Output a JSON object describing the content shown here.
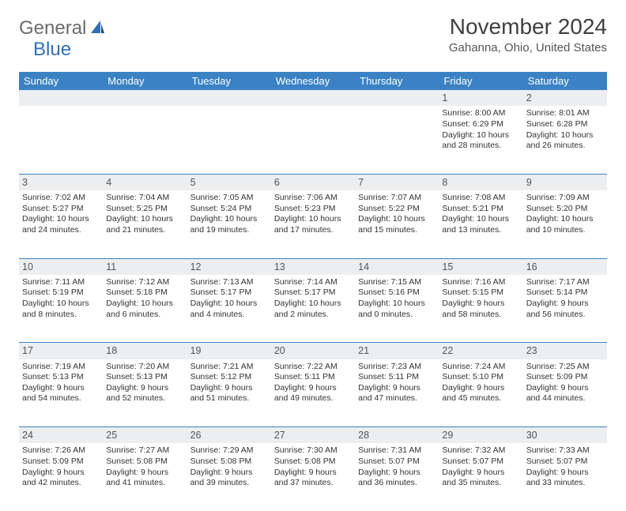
{
  "logo": {
    "text1": "General",
    "text2": "Blue"
  },
  "title": "November 2024",
  "location": "Gahanna, Ohio, United States",
  "colors": {
    "header_bg": "#3a82c4",
    "header_text": "#ffffff",
    "daynum_bg": "#eceef0",
    "border": "#3a82c4",
    "logo_gray": "#6b6b6b",
    "logo_blue": "#2f6fb5"
  },
  "day_headers": [
    "Sunday",
    "Monday",
    "Tuesday",
    "Wednesday",
    "Thursday",
    "Friday",
    "Saturday"
  ],
  "weeks": [
    {
      "nums": [
        "",
        "",
        "",
        "",
        "",
        "1",
        "2"
      ],
      "info": [
        "",
        "",
        "",
        "",
        "",
        "Sunrise: 8:00 AM\nSunset: 6:29 PM\nDaylight: 10 hours and 28 minutes.",
        "Sunrise: 8:01 AM\nSunset: 6:28 PM\nDaylight: 10 hours and 26 minutes."
      ]
    },
    {
      "nums": [
        "3",
        "4",
        "5",
        "6",
        "7",
        "8",
        "9"
      ],
      "info": [
        "Sunrise: 7:02 AM\nSunset: 5:27 PM\nDaylight: 10 hours and 24 minutes.",
        "Sunrise: 7:04 AM\nSunset: 5:25 PM\nDaylight: 10 hours and 21 minutes.",
        "Sunrise: 7:05 AM\nSunset: 5:24 PM\nDaylight: 10 hours and 19 minutes.",
        "Sunrise: 7:06 AM\nSunset: 5:23 PM\nDaylight: 10 hours and 17 minutes.",
        "Sunrise: 7:07 AM\nSunset: 5:22 PM\nDaylight: 10 hours and 15 minutes.",
        "Sunrise: 7:08 AM\nSunset: 5:21 PM\nDaylight: 10 hours and 13 minutes.",
        "Sunrise: 7:09 AM\nSunset: 5:20 PM\nDaylight: 10 hours and 10 minutes."
      ]
    },
    {
      "nums": [
        "10",
        "11",
        "12",
        "13",
        "14",
        "15",
        "16"
      ],
      "info": [
        "Sunrise: 7:11 AM\nSunset: 5:19 PM\nDaylight: 10 hours and 8 minutes.",
        "Sunrise: 7:12 AM\nSunset: 5:18 PM\nDaylight: 10 hours and 6 minutes.",
        "Sunrise: 7:13 AM\nSunset: 5:17 PM\nDaylight: 10 hours and 4 minutes.",
        "Sunrise: 7:14 AM\nSunset: 5:17 PM\nDaylight: 10 hours and 2 minutes.",
        "Sunrise: 7:15 AM\nSunset: 5:16 PM\nDaylight: 10 hours and 0 minutes.",
        "Sunrise: 7:16 AM\nSunset: 5:15 PM\nDaylight: 9 hours and 58 minutes.",
        "Sunrise: 7:17 AM\nSunset: 5:14 PM\nDaylight: 9 hours and 56 minutes."
      ]
    },
    {
      "nums": [
        "17",
        "18",
        "19",
        "20",
        "21",
        "22",
        "23"
      ],
      "info": [
        "Sunrise: 7:19 AM\nSunset: 5:13 PM\nDaylight: 9 hours and 54 minutes.",
        "Sunrise: 7:20 AM\nSunset: 5:13 PM\nDaylight: 9 hours and 52 minutes.",
        "Sunrise: 7:21 AM\nSunset: 5:12 PM\nDaylight: 9 hours and 51 minutes.",
        "Sunrise: 7:22 AM\nSunset: 5:11 PM\nDaylight: 9 hours and 49 minutes.",
        "Sunrise: 7:23 AM\nSunset: 5:11 PM\nDaylight: 9 hours and 47 minutes.",
        "Sunrise: 7:24 AM\nSunset: 5:10 PM\nDaylight: 9 hours and 45 minutes.",
        "Sunrise: 7:25 AM\nSunset: 5:09 PM\nDaylight: 9 hours and 44 minutes."
      ]
    },
    {
      "nums": [
        "24",
        "25",
        "26",
        "27",
        "28",
        "29",
        "30"
      ],
      "info": [
        "Sunrise: 7:26 AM\nSunset: 5:09 PM\nDaylight: 9 hours and 42 minutes.",
        "Sunrise: 7:27 AM\nSunset: 5:08 PM\nDaylight: 9 hours and 41 minutes.",
        "Sunrise: 7:29 AM\nSunset: 5:08 PM\nDaylight: 9 hours and 39 minutes.",
        "Sunrise: 7:30 AM\nSunset: 5:08 PM\nDaylight: 9 hours and 37 minutes.",
        "Sunrise: 7:31 AM\nSunset: 5:07 PM\nDaylight: 9 hours and 36 minutes.",
        "Sunrise: 7:32 AM\nSunset: 5:07 PM\nDaylight: 9 hours and 35 minutes.",
        "Sunrise: 7:33 AM\nSunset: 5:07 PM\nDaylight: 9 hours and 33 minutes."
      ]
    }
  ]
}
